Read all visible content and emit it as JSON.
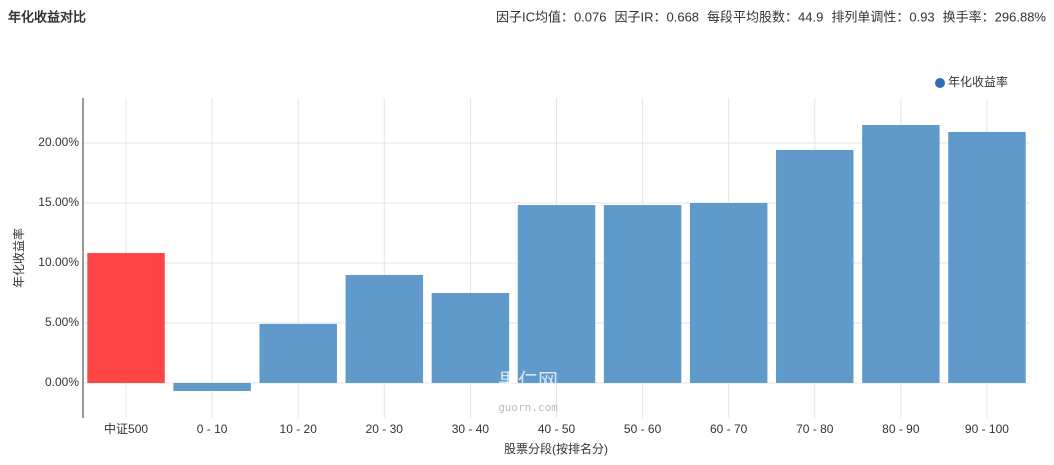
{
  "chart_data": {
    "type": "bar",
    "title": "年化收益对比",
    "stats": [
      "因子IC均值：0.076",
      "因子IR：0.668",
      "每段平均股数：44.9",
      "排列单调性：0.93",
      "换手率：296.88%"
    ],
    "legend": "年化收益率",
    "legend_position": "top-right",
    "y_label": "年化收益率",
    "x_label": "股票分段(按排名分)",
    "watermark": [
      "果仁网",
      "guorn.com"
    ],
    "categories": [
      "中证500",
      "0 - 10",
      "10 - 20",
      "20 - 30",
      "30 - 40",
      "40 - 50",
      "50 - 60",
      "60 - 70",
      "70 - 80",
      "80 - 90",
      "90 - 100"
    ],
    "values": [
      10.83,
      -0.67,
      4.92,
      9.0,
      7.5,
      14.83,
      14.83,
      15.0,
      19.42,
      21.5,
      20.92
    ],
    "colors": [
      "#ff4040",
      "#5b97c9",
      "#5b97c9",
      "#5b97c9",
      "#5b97c9",
      "#5b97c9",
      "#5b97c9",
      "#5b97c9",
      "#5b97c9",
      "#5b97c9",
      "#5b97c9"
    ],
    "legend_color": "#2f6fb0",
    "ylim": [
      -2.92,
      23.75
    ],
    "yticks": [
      {
        "value": 0,
        "label": "0.00%"
      },
      {
        "value": 5,
        "label": "5.00%"
      },
      {
        "value": 10,
        "label": "10.00%"
      },
      {
        "value": 15,
        "label": "15.00%"
      },
      {
        "value": 20,
        "label": "20.00%"
      }
    ],
    "grid": true
  }
}
